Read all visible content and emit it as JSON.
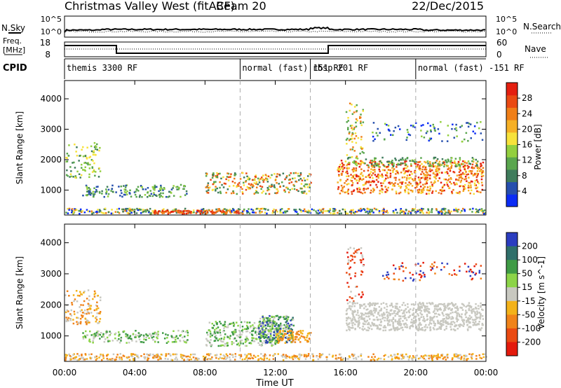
{
  "header": {
    "station": "Christmas Valley West (fitACF)",
    "beam": "Beam 20",
    "date": "22/Dec/2015"
  },
  "noise_panel": {
    "left_label": "N.Sky",
    "right_label": "N.Search",
    "ticks": [
      "10^5",
      "10^0"
    ]
  },
  "freq_panel": {
    "left_label_top": "Freq.",
    "left_label_bottom": "[MHz]",
    "left_ticks": [
      "18",
      "8"
    ],
    "right_label": "Nave",
    "right_ticks": [
      "60",
      "0"
    ]
  },
  "cpid": {
    "label": "CPID",
    "segments": [
      {
        "name": "themis 3300 RF",
        "start_hour": 0
      },
      {
        "name": "normal (fast) 151 RF",
        "start_hour": 10
      },
      {
        "name": "rbsp 201 RF",
        "start_hour": 14
      },
      {
        "name": "normal (fast) -151 RF",
        "start_hour": 20
      }
    ]
  },
  "chart_data": [
    {
      "type": "heatmap",
      "name": "power",
      "ylabel": "Slant Range [km]",
      "yticks": [
        1000,
        2000,
        3000,
        4000
      ],
      "xlim": [
        0,
        24
      ],
      "colorbar": {
        "label": "Power [dB]",
        "ticks": [
          4,
          8,
          12,
          16,
          20,
          24,
          28
        ],
        "colors": [
          "#0b2cf5",
          "#264fae",
          "#3f7c5c",
          "#5aa64e",
          "#93cf3f",
          "#f7e23b",
          "#f6b026",
          "#f07f18",
          "#ea4a13",
          "#e41f10"
        ]
      }
    },
    {
      "type": "heatmap",
      "name": "velocity",
      "ylabel": "Slant Range [km]",
      "yticks": [
        1000,
        2000,
        3000,
        4000
      ],
      "xlim": [
        0,
        24
      ],
      "xlabel": "Time UT",
      "xticks": [
        "00:00",
        "04:00",
        "08:00",
        "12:00",
        "16:00",
        "20:00",
        "00:00"
      ],
      "colorbar": {
        "label": "Velocity [m s^-1]",
        "ticks": [
          200,
          100,
          50,
          15,
          -15,
          -50,
          -100,
          -200
        ],
        "colors": [
          "#2b3dc0",
          "#2f6f6a",
          "#3f9b45",
          "#8cd448",
          "#c8c8c0",
          "#f3b21a",
          "#f0831a",
          "#ea4a12",
          "#e41a0c"
        ]
      }
    }
  ]
}
